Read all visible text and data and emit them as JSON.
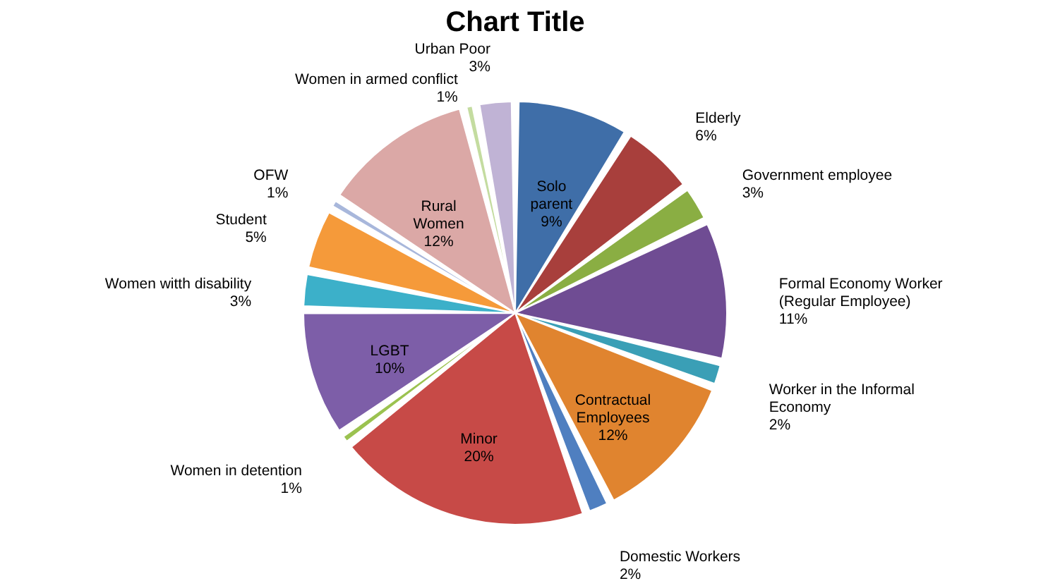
{
  "chart_data": {
    "type": "pie",
    "title": "Chart Title",
    "categories": [
      "Solo parent",
      "Elderly",
      "Government employee",
      "Formal Economy Worker (Regular Employee)",
      "Worker in the Informal Economy",
      "Contractual Employees",
      "Domestic Workers",
      "Minor",
      "Women in detention",
      "LGBT",
      "Women witth disability",
      "Student",
      "OFW",
      "Rural Women",
      "Women in armed conflict",
      "Urban Poor"
    ],
    "values": [
      9,
      6,
      3,
      11,
      2,
      12,
      2,
      20,
      1,
      10,
      3,
      5,
      1,
      12,
      1,
      3
    ],
    "value_labels": [
      "9%",
      "6%",
      "3%",
      "11%",
      "2%",
      "12%",
      "2%",
      "20%",
      "1%",
      "10%",
      "3%",
      "5%",
      "1%",
      "12%",
      "1%",
      "3%"
    ],
    "colors": [
      "#3f6ea8",
      "#a83f3c",
      "#8aae43",
      "#6f4c93",
      "#3a9fb6",
      "#e0842f",
      "#4f7fc0",
      "#c74a47",
      "#9bc250",
      "#7d5ea8",
      "#3cb0c9",
      "#f59a3a",
      "#a8b7db",
      "#dba8a6",
      "#c4dca0",
      "#c0b3d5"
    ],
    "legend": false
  }
}
